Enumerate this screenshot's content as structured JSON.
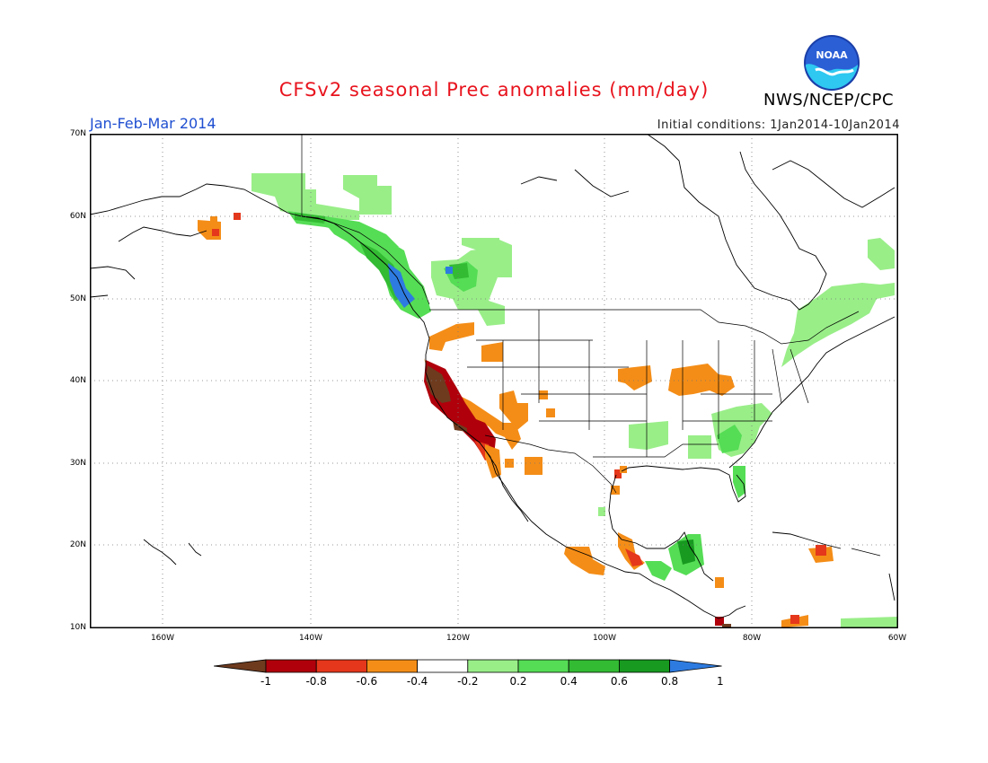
{
  "title": "CFSv2 seasonal Prec anomalies (mm/day)",
  "agency": "NWS/NCEP/CPC",
  "logo_text": "NOAA",
  "period": "Jan-Feb-Mar 2014",
  "initial_conditions": "Initial conditions: 1Jan2014-10Jan2014",
  "map": {
    "lat_labels": [
      "70N",
      "60N",
      "50N",
      "40N",
      "30N",
      "20N",
      "10N"
    ],
    "lon_labels": [
      "160W",
      "140W",
      "120W",
      "100W",
      "80W",
      "60W"
    ],
    "grid": "dotted"
  },
  "colorbar": {
    "labels": [
      "-1",
      "-0.8",
      "-0.6",
      "-0.4",
      "-0.2",
      "0.2",
      "0.4",
      "0.6",
      "0.8",
      "1"
    ],
    "colors": [
      "#6e3b1f",
      "#b0000b",
      "#e5371b",
      "#f48d17",
      "#ffffff",
      "#99ee88",
      "#55dd55",
      "#33bb33",
      "#179a1f",
      "#2d7be0"
    ],
    "end_colors": {
      "low": "#6e3b1f",
      "high": "#2d7be0"
    }
  }
}
